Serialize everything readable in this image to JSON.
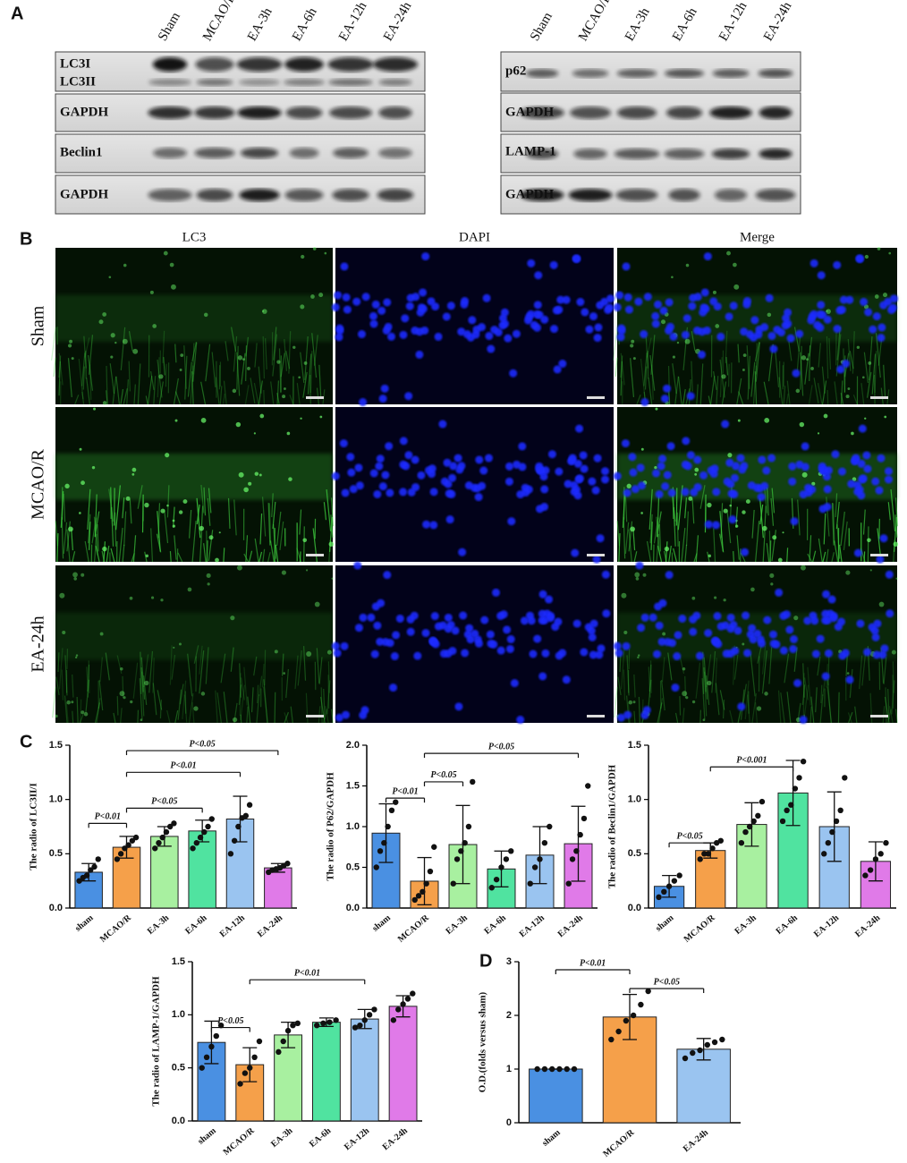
{
  "panel_labels": [
    "A",
    "B",
    "C",
    "D"
  ],
  "blots": {
    "left_lanes": [
      "Sham",
      "MCAO/R",
      "EA-3h",
      "EA-6h",
      "EA-12h",
      "EA-24h"
    ],
    "right_lanes": [
      "Sham",
      "MCAO/R",
      "EA-3h",
      "EA-6h",
      "EA-12h",
      "EA-24h"
    ],
    "left_rows": [
      "LC3I",
      "LC3II",
      "GAPDH",
      "Beclin1",
      "GAPDH"
    ],
    "right_rows": [
      "p62",
      "GAPDH",
      "LAMP-1",
      "GAPDH"
    ]
  },
  "imaging": {
    "columns": [
      "LC3",
      "DAPI",
      "Merge"
    ],
    "rows": [
      "Sham",
      "MCAO/R",
      "EA-24h"
    ]
  },
  "chart_data": [
    {
      "type": "bar",
      "ylabel": "The radio of LC3II/I",
      "categories": [
        "sham",
        "MCAO/R",
        "EA-3h",
        "EA-6h",
        "EA-12h",
        "EA-24h"
      ],
      "colors": [
        "#4a90e2",
        "#f5a04a",
        "#a8f0a0",
        "#50e3a0",
        "#9ac4f0",
        "#e07ae8"
      ],
      "values": [
        0.33,
        0.56,
        0.66,
        0.71,
        0.82,
        0.37
      ],
      "errors": [
        0.08,
        0.1,
        0.09,
        0.1,
        0.21,
        0.04
      ],
      "points": [
        [
          0.25,
          0.28,
          0.3,
          0.35,
          0.38,
          0.45
        ],
        [
          0.45,
          0.5,
          0.55,
          0.58,
          0.62,
          0.65
        ],
        [
          0.55,
          0.6,
          0.65,
          0.7,
          0.75,
          0.78
        ],
        [
          0.55,
          0.6,
          0.65,
          0.7,
          0.75,
          0.82
        ],
        [
          0.5,
          0.62,
          0.75,
          0.83,
          0.85,
          0.95
        ],
        [
          0.33,
          0.35,
          0.36,
          0.37,
          0.39,
          0.41
        ]
      ],
      "ylim": [
        0,
        1.5
      ],
      "yticks": [
        {
          "value": 0,
          "label": "0.0"
        },
        {
          "value": 0.5,
          "label": "0.5"
        },
        {
          "value": 1,
          "label": "1.0"
        },
        {
          "value": 1.5,
          "label": "1.5"
        }
      ],
      "annotations": [
        {
          "text": "P<0.01",
          "pair": [
            0,
            1
          ],
          "y": 0.78
        },
        {
          "text": "P<0.05",
          "pair": [
            1,
            3
          ],
          "y": 0.92
        },
        {
          "text": "P<0.01",
          "pair": [
            1,
            4
          ],
          "y": 1.25
        },
        {
          "text": "P<0.05",
          "pair": [
            1,
            5
          ],
          "y": 1.45
        }
      ]
    },
    {
      "type": "bar",
      "ylabel": "The radio of P62/GAPDH",
      "categories": [
        "sham",
        "MCAO/R",
        "EA-3h",
        "EA-6h",
        "EA-12h",
        "EA-24h"
      ],
      "colors": [
        "#4a90e2",
        "#f5a04a",
        "#a8f0a0",
        "#50e3a0",
        "#9ac4f0",
        "#e07ae8"
      ],
      "values": [
        0.92,
        0.33,
        0.78,
        0.48,
        0.65,
        0.79
      ],
      "errors": [
        0.36,
        0.29,
        0.48,
        0.22,
        0.35,
        0.46
      ],
      "points": [
        [
          0.5,
          0.7,
          0.8,
          1.0,
          1.2,
          1.3
        ],
        [
          0.1,
          0.15,
          0.2,
          0.3,
          0.45,
          0.75
        ],
        [
          0.3,
          0.6,
          0.7,
          0.8,
          1.0,
          1.55
        ],
        [
          0.25,
          0.35,
          0.5,
          0.6,
          0.7
        ],
        [
          0.3,
          0.5,
          0.6,
          0.8,
          1.0
        ],
        [
          0.3,
          0.6,
          0.7,
          0.9,
          1.1,
          1.5
        ]
      ],
      "ylim": [
        0,
        2
      ],
      "yticks": [
        {
          "value": 0,
          "label": "0.0"
        },
        {
          "value": 0.5,
          "label": "0.5"
        },
        {
          "value": 1,
          "label": "1.0"
        },
        {
          "value": 1.5,
          "label": "1.5"
        },
        {
          "value": 2,
          "label": "2.0"
        }
      ],
      "annotations": [
        {
          "text": "P<0.01",
          "pair": [
            0,
            1
          ],
          "y": 1.35
        },
        {
          "text": "P<0.05",
          "pair": [
            1,
            2
          ],
          "y": 1.55
        },
        {
          "text": "P<0.05",
          "pair": [
            1,
            5
          ],
          "y": 1.9
        }
      ]
    },
    {
      "type": "bar",
      "ylabel": "The radio of Beclin1/GAPDH",
      "categories": [
        "sham",
        "MCAO/R",
        "EA-3h",
        "EA-6h",
        "EA-12h",
        "EA-24h"
      ],
      "colors": [
        "#4a90e2",
        "#f5a04a",
        "#a8f0a0",
        "#50e3a0",
        "#9ac4f0",
        "#e07ae8"
      ],
      "values": [
        0.2,
        0.53,
        0.77,
        1.06,
        0.75,
        0.43
      ],
      "errors": [
        0.1,
        0.07,
        0.2,
        0.3,
        0.32,
        0.18
      ],
      "points": [
        [
          0.1,
          0.15,
          0.2,
          0.25,
          0.3
        ],
        [
          0.45,
          0.5,
          0.5,
          0.55,
          0.6,
          0.62
        ],
        [
          0.6,
          0.7,
          0.75,
          0.8,
          0.85,
          0.98
        ],
        [
          0.8,
          0.9,
          0.95,
          1.1,
          1.2,
          1.35
        ],
        [
          0.5,
          0.6,
          0.7,
          0.8,
          0.9,
          1.2
        ],
        [
          0.3,
          0.35,
          0.45,
          0.5,
          0.6
        ]
      ],
      "ylim": [
        0,
        1.5
      ],
      "yticks": [
        {
          "value": 0,
          "label": "0.0"
        },
        {
          "value": 0.5,
          "label": "0.5"
        },
        {
          "value": 1,
          "label": "1.0"
        },
        {
          "value": 1.5,
          "label": "1.5"
        }
      ],
      "annotations": [
        {
          "text": "P<0.05",
          "pair": [
            0,
            1
          ],
          "y": 0.6
        },
        {
          "text": "P<0.001",
          "pair": [
            1,
            3
          ],
          "y": 1.3
        }
      ]
    },
    {
      "type": "bar",
      "ylabel": "The radio of LAMP-1/GAPDH",
      "categories": [
        "sham",
        "MCAO/R",
        "EA-3h",
        "EA-6h",
        "EA-12h",
        "EA-24h"
      ],
      "colors": [
        "#4a90e2",
        "#f5a04a",
        "#a8f0a0",
        "#50e3a0",
        "#9ac4f0",
        "#e07ae8"
      ],
      "values": [
        0.74,
        0.53,
        0.81,
        0.93,
        0.96,
        1.08
      ],
      "errors": [
        0.2,
        0.16,
        0.12,
        0.04,
        0.09,
        0.1
      ],
      "points": [
        [
          0.5,
          0.6,
          0.7,
          0.8,
          0.9
        ],
        [
          0.35,
          0.45,
          0.5,
          0.6,
          0.75
        ],
        [
          0.65,
          0.75,
          0.85,
          0.9,
          0.92
        ],
        [
          0.9,
          0.92,
          0.93,
          0.95
        ],
        [
          0.88,
          0.9,
          0.95,
          1.0,
          1.05
        ],
        [
          0.95,
          1.05,
          1.1,
          1.15,
          1.2
        ]
      ],
      "ylim": [
        0,
        1.5
      ],
      "yticks": [
        {
          "value": 0,
          "label": "0.0"
        },
        {
          "value": 0.5,
          "label": "0.5"
        },
        {
          "value": 1,
          "label": "1.0"
        },
        {
          "value": 1.5,
          "label": "1.5"
        }
      ],
      "annotations": [
        {
          "text": "P<0.05",
          "pair": [
            0,
            1
          ],
          "y": 0.88
        },
        {
          "text": "P<0.01",
          "pair": [
            1,
            4
          ],
          "y": 1.33
        }
      ]
    },
    {
      "type": "bar",
      "ylabel": "O.D.(folds versus sham)",
      "categories": [
        "sham",
        "MCAO/R",
        "EA-24h"
      ],
      "colors": [
        "#4a90e2",
        "#f5a04a",
        "#9ac4f0"
      ],
      "values": [
        1.0,
        1.97,
        1.37
      ],
      "errors": [
        0,
        0.42,
        0.2
      ],
      "points": [
        [
          1,
          1,
          1,
          1,
          1,
          1
        ],
        [
          1.55,
          1.7,
          1.9,
          2.0,
          2.2,
          2.45
        ],
        [
          1.2,
          1.3,
          1.35,
          1.45,
          1.5,
          1.55
        ]
      ],
      "ylim": [
        0,
        3
      ],
      "yticks": [
        0,
        1,
        2,
        3
      ],
      "annotations": [
        {
          "text": "P<0.01",
          "pair": [
            0,
            1
          ],
          "y": 2.85
        },
        {
          "text": "P<0.05",
          "pair": [
            1,
            2
          ],
          "y": 2.5
        }
      ]
    }
  ]
}
